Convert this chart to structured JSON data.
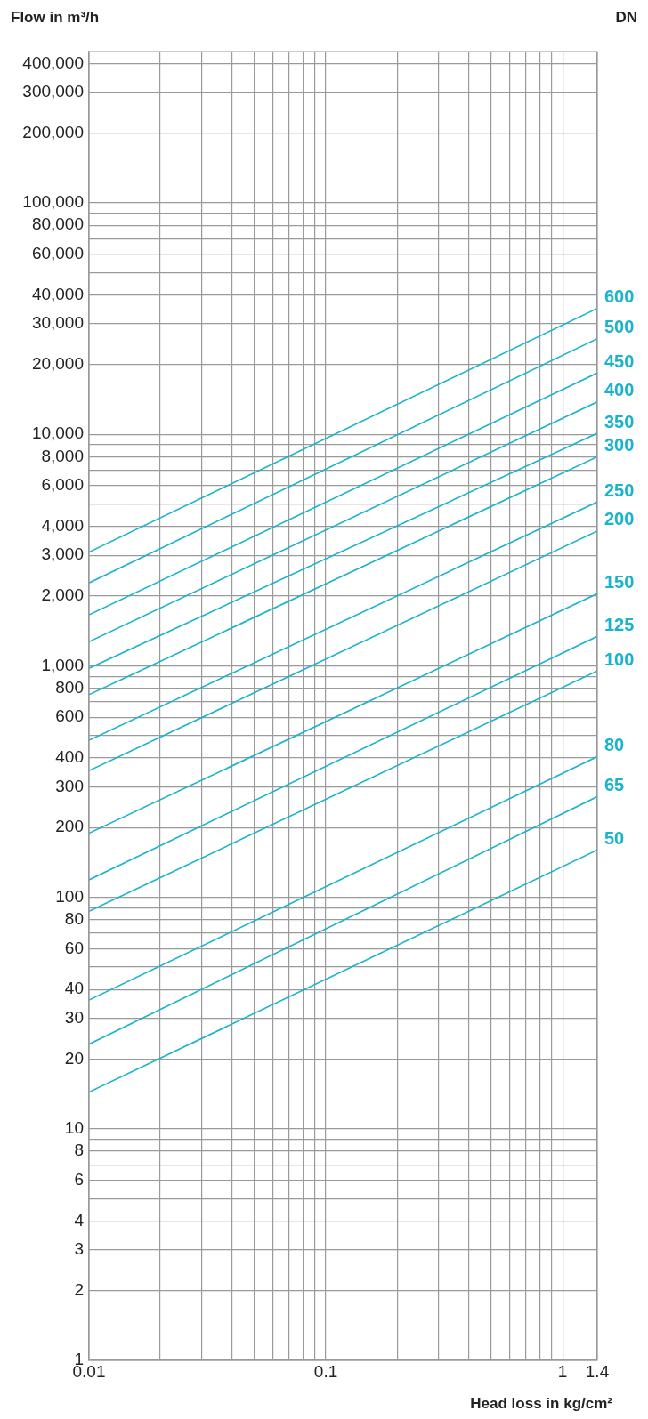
{
  "chart_data": {
    "type": "line",
    "ylabel": "Flow in m³/h",
    "xlabel": "Head loss in kg/cm²",
    "legend_title": "DN",
    "log": "xy",
    "grid": true,
    "legend": false,
    "xlim": [
      0.01,
      1.4
    ],
    "ylim": [
      1,
      450000
    ],
    "xticks": [
      0.01,
      {
        "value": 0.02,
        "label": null
      },
      {
        "value": 0.03,
        "label": null
      },
      {
        "value": 0.04,
        "label": null
      },
      {
        "value": 0.05,
        "label": null
      },
      {
        "value": 0.06,
        "label": null
      },
      {
        "value": 0.07,
        "label": null
      },
      {
        "value": 0.08,
        "label": null
      },
      {
        "value": 0.09,
        "label": null
      },
      0.1,
      {
        "value": 0.2,
        "label": null
      },
      {
        "value": 0.3,
        "label": null
      },
      {
        "value": 0.4,
        "label": null
      },
      {
        "value": 0.5,
        "label": null
      },
      {
        "value": 0.6,
        "label": null
      },
      {
        "value": 0.7,
        "label": null
      },
      {
        "value": 0.8,
        "label": null
      },
      {
        "value": 0.9,
        "label": null
      },
      1,
      1.4
    ],
    "yticks": [
      1,
      2,
      3,
      4,
      {
        "value": 5,
        "label": null
      },
      6,
      {
        "value": 7,
        "label": null
      },
      8,
      {
        "value": 9,
        "label": null
      },
      10,
      20,
      30,
      40,
      {
        "value": 50,
        "label": null
      },
      60,
      {
        "value": 70,
        "label": null
      },
      80,
      {
        "value": 90,
        "label": null
      },
      100,
      200,
      300,
      400,
      {
        "value": 500,
        "label": null
      },
      600,
      {
        "value": 700,
        "label": null
      },
      800,
      {
        "value": 900,
        "label": null
      },
      {
        "value": 1000,
        "label": "1,000"
      },
      {
        "value": 2000,
        "label": "2,000"
      },
      {
        "value": 3000,
        "label": "3,000"
      },
      {
        "value": 4000,
        "label": "4,000"
      },
      {
        "value": 5000,
        "label": null
      },
      {
        "value": 6000,
        "label": "6,000"
      },
      {
        "value": 7000,
        "label": null
      },
      {
        "value": 8000,
        "label": "8,000"
      },
      {
        "value": 9000,
        "label": null
      },
      {
        "value": 10000,
        "label": "10,000"
      },
      {
        "value": 20000,
        "label": "20,000"
      },
      {
        "value": 30000,
        "label": "30,000"
      },
      {
        "value": 40000,
        "label": "40,000"
      },
      {
        "value": 50000,
        "label": null
      },
      {
        "value": 60000,
        "label": "60,000"
      },
      {
        "value": 70000,
        "label": null
      },
      {
        "value": 80000,
        "label": "80,000"
      },
      {
        "value": 90000,
        "label": null
      },
      {
        "value": 100000,
        "label": "100,000"
      },
      {
        "value": 200000,
        "label": "200,000"
      },
      {
        "value": 300000,
        "label": "300,000"
      },
      {
        "value": 400000,
        "label": "400,000"
      }
    ],
    "x": [
      0.01,
      1.4
    ],
    "series": [
      {
        "name": "600",
        "color": "#1ab3cc",
        "values": [
          3100,
          35000
        ]
      },
      {
        "name": "500",
        "color": "#1ab3cc",
        "values": [
          2280,
          25900
        ]
      },
      {
        "name": "450",
        "color": "#1ab3cc",
        "values": [
          1660,
          18400
        ]
      },
      {
        "name": "400",
        "color": "#1ab3cc",
        "values": [
          1270,
          13800
        ]
      },
      {
        "name": "350",
        "color": "#1ab3cc",
        "values": [
          975,
          10100
        ]
      },
      {
        "name": "300",
        "color": "#1ab3cc",
        "values": [
          750,
          8000
        ]
      },
      {
        "name": "250",
        "color": "#1ab3cc",
        "values": [
          477,
          5100
        ]
      },
      {
        "name": "200",
        "color": "#1ab3cc",
        "values": [
          352,
          3820
        ]
      },
      {
        "name": "150",
        "color": "#1ab3cc",
        "values": [
          189,
          2050
        ]
      },
      {
        "name": "125",
        "color": "#1ab3cc",
        "values": [
          119,
          1340
        ]
      },
      {
        "name": "100",
        "color": "#1ab3cc",
        "values": [
          87,
          950
        ]
      },
      {
        "name": "80",
        "color": "#1ab3cc",
        "values": [
          36,
          405
        ]
      },
      {
        "name": "65",
        "color": "#1ab3cc",
        "values": [
          23.2,
          272
        ]
      },
      {
        "name": "50",
        "color": "#1ab3cc",
        "values": [
          14.4,
          160
        ]
      }
    ]
  }
}
